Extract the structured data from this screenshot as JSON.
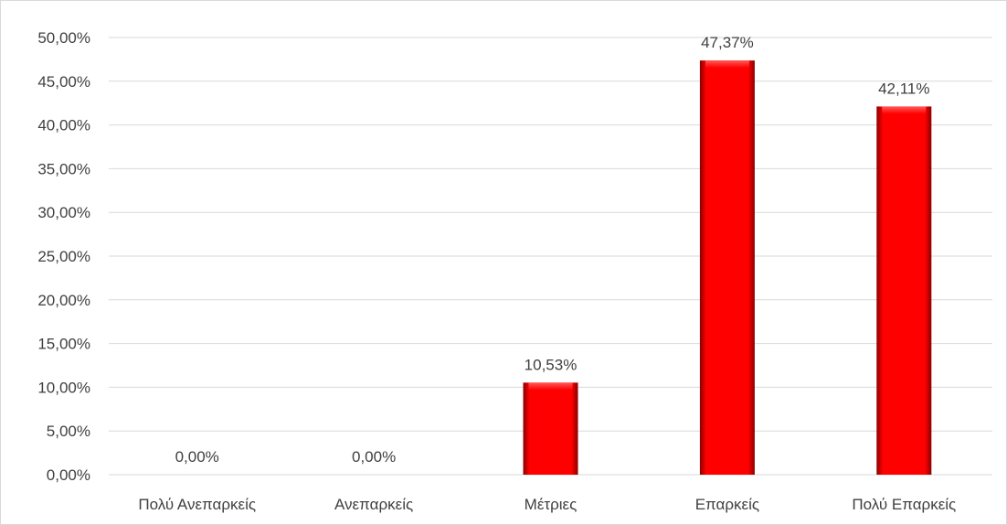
{
  "chart_data": {
    "type": "bar",
    "categories": [
      "Πολύ Ανεπαρκείς",
      "Ανεπαρκείς",
      "Μέτριες",
      "Επαρκείς",
      "Πολύ Επαρκείς"
    ],
    "values": [
      0.0,
      0.0,
      10.53,
      47.37,
      42.11
    ],
    "data_labels": [
      "0,00%",
      "0,00%",
      "10,53%",
      "47,37%",
      "42,11%"
    ],
    "y_ticks": [
      0,
      5,
      10,
      15,
      20,
      25,
      30,
      35,
      40,
      45,
      50
    ],
    "y_tick_labels": [
      "0,00%",
      "5,00%",
      "10,00%",
      "15,00%",
      "20,00%",
      "25,00%",
      "30,00%",
      "35,00%",
      "40,00%",
      "45,00%",
      "50,00%"
    ],
    "ylim": [
      0,
      50
    ],
    "title": "",
    "xlabel": "",
    "ylabel": "",
    "grid": true,
    "legend": "none",
    "bar_color": "#ff0000",
    "bar_dark_color": "#8b0000"
  }
}
